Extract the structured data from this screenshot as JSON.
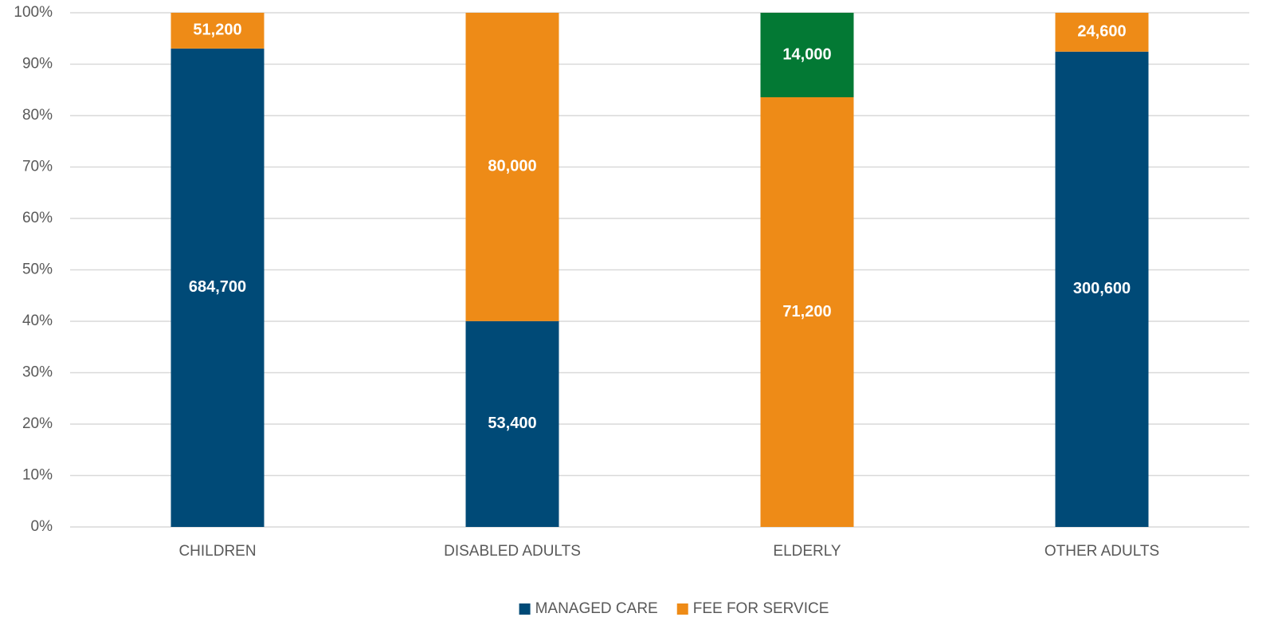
{
  "chart_data": {
    "type": "bar",
    "stacking": "percent",
    "categories": [
      "CHILDREN",
      "DISABLED ADULTS",
      "ELDERLY",
      "OTHER ADULTS"
    ],
    "series": [
      {
        "name": "MANAGED CARE",
        "color": "#004a77",
        "values": [
          684700,
          53400,
          null,
          300600
        ],
        "value_labels": [
          "684,700",
          "53,400",
          null,
          "300,600"
        ]
      },
      {
        "name": "FEE FOR SERVICE",
        "color": "#ee8b17",
        "values": [
          51200,
          80000,
          71200,
          24600
        ],
        "value_labels": [
          "51,200",
          "80,000",
          "71,200",
          "24,600"
        ]
      },
      {
        "color": "#037934",
        "values": [
          null,
          null,
          14000,
          null
        ],
        "value_labels": [
          null,
          null,
          "14,000",
          null
        ]
      }
    ],
    "ylim": [
      0,
      100
    ],
    "yticks": [
      {
        "value": 0,
        "label": "0%"
      },
      {
        "value": 10,
        "label": "10%"
      },
      {
        "value": 20,
        "label": "20%"
      },
      {
        "value": 30,
        "label": "30%"
      },
      {
        "value": 40,
        "label": "40%"
      },
      {
        "value": 50,
        "label": "50%"
      },
      {
        "value": 60,
        "label": "60%"
      },
      {
        "value": 70,
        "label": "70%"
      },
      {
        "value": 80,
        "label": "80%"
      },
      {
        "value": 90,
        "label": "90%"
      },
      {
        "value": 100,
        "label": "100%"
      }
    ],
    "grid": true,
    "legend": "bottom"
  }
}
